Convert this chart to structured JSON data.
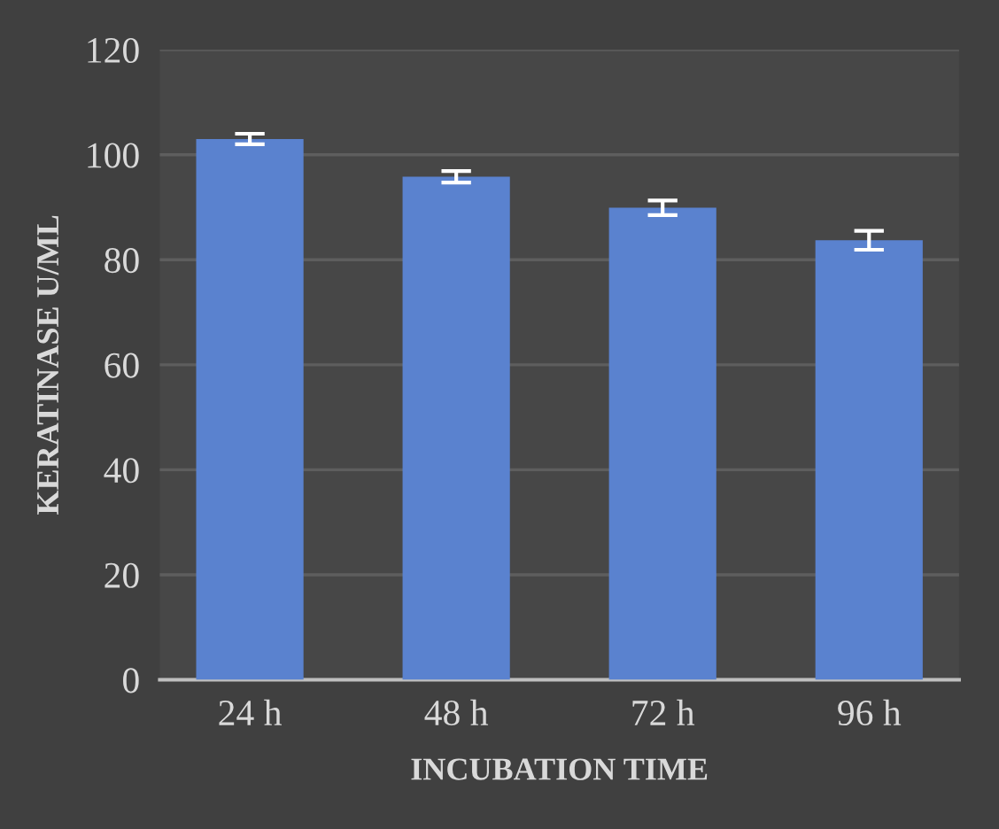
{
  "chart_data": {
    "type": "bar",
    "xlabel": "INCUBATION TIME",
    "ylabel": "KERATINASE U/ML",
    "categories": [
      "24 h",
      "48 h",
      "72 h",
      "96 h"
    ],
    "values": [
      103,
      95.8,
      89.9,
      83.7
    ],
    "errors": [
      1.0,
      1.1,
      1.4,
      1.8
    ],
    "color": "#5a82cf",
    "ylim": [
      0,
      120
    ],
    "yticks": [
      0,
      20,
      40,
      60,
      80,
      100,
      120
    ],
    "grid": "y"
  }
}
